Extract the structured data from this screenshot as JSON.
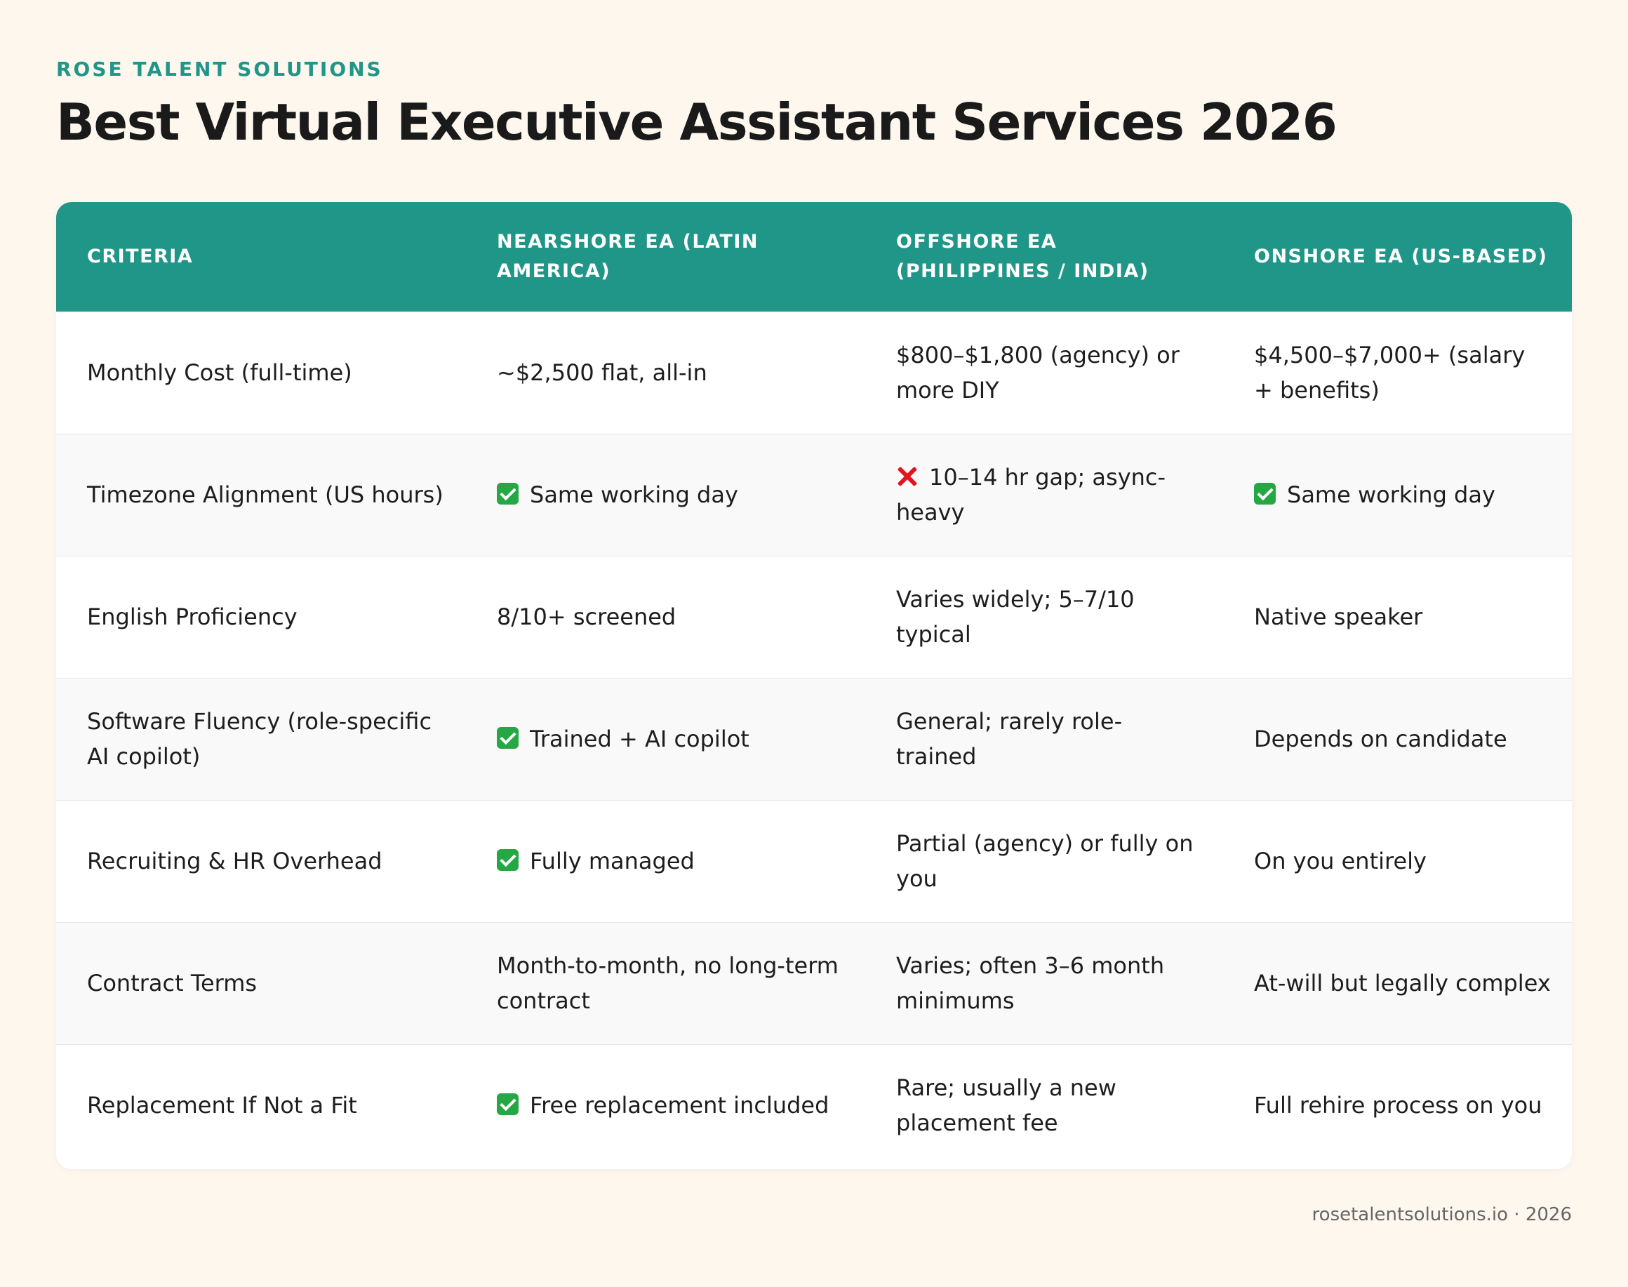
{
  "brand": "ROSE TALENT SOLUTIONS",
  "title": "Best Virtual Executive Assistant Services 2026",
  "colors": {
    "accent": "#1f9688",
    "background": "#fdf7ee",
    "check": "#25a744",
    "cross": "#e0141e"
  },
  "table": {
    "headers": [
      "CRITERIA",
      "NEARSHORE EA (LATIN AMERICA)",
      "OFFSHORE EA (PHILIPPINES / INDIA)",
      "ONSHORE EA (US-BASED)"
    ],
    "rows": [
      {
        "criteria": "Monthly Cost (full-time)",
        "nearshore": {
          "text": "~$2,500 flat, all-in",
          "icon": ""
        },
        "offshore": {
          "text": "$800–$1,800 (agency) or more DIY",
          "icon": ""
        },
        "onshore": {
          "text": "$4,500–$7,000+ (salary + benefits)",
          "icon": ""
        }
      },
      {
        "criteria": "Timezone Alignment (US hours)",
        "nearshore": {
          "text": "Same working day",
          "icon": "check-icon"
        },
        "offshore": {
          "text": "10–14 hr gap; async-heavy",
          "icon": "cross-icon"
        },
        "onshore": {
          "text": "Same working day",
          "icon": "check-icon"
        }
      },
      {
        "criteria": "English Proficiency",
        "nearshore": {
          "text": "8/10+ screened",
          "icon": ""
        },
        "offshore": {
          "text": "Varies widely; 5–7/10 typical",
          "icon": ""
        },
        "onshore": {
          "text": "Native speaker",
          "icon": ""
        }
      },
      {
        "criteria": "Software Fluency (role-specific AI copilot)",
        "nearshore": {
          "text": "Trained + AI copilot",
          "icon": "check-icon"
        },
        "offshore": {
          "text": "General; rarely role-trained",
          "icon": ""
        },
        "onshore": {
          "text": "Depends on candidate",
          "icon": ""
        }
      },
      {
        "criteria": "Recruiting & HR Overhead",
        "nearshore": {
          "text": "Fully managed",
          "icon": "check-icon"
        },
        "offshore": {
          "text": "Partial (agency) or fully on you",
          "icon": ""
        },
        "onshore": {
          "text": "On you entirely",
          "icon": ""
        }
      },
      {
        "criteria": "Contract Terms",
        "nearshore": {
          "text": "Month-to-month, no long-term contract",
          "icon": ""
        },
        "offshore": {
          "text": "Varies; often 3–6 month minimums",
          "icon": ""
        },
        "onshore": {
          "text": "At-will but legally complex",
          "icon": ""
        }
      },
      {
        "criteria": "Replacement If Not a Fit",
        "nearshore": {
          "text": "Free replacement included",
          "icon": "check-icon"
        },
        "offshore": {
          "text": "Rare; usually a new placement fee",
          "icon": ""
        },
        "onshore": {
          "text": "Full rehire process on you",
          "icon": ""
        }
      }
    ]
  },
  "footer": "rosetalentsolutions.io · 2026"
}
